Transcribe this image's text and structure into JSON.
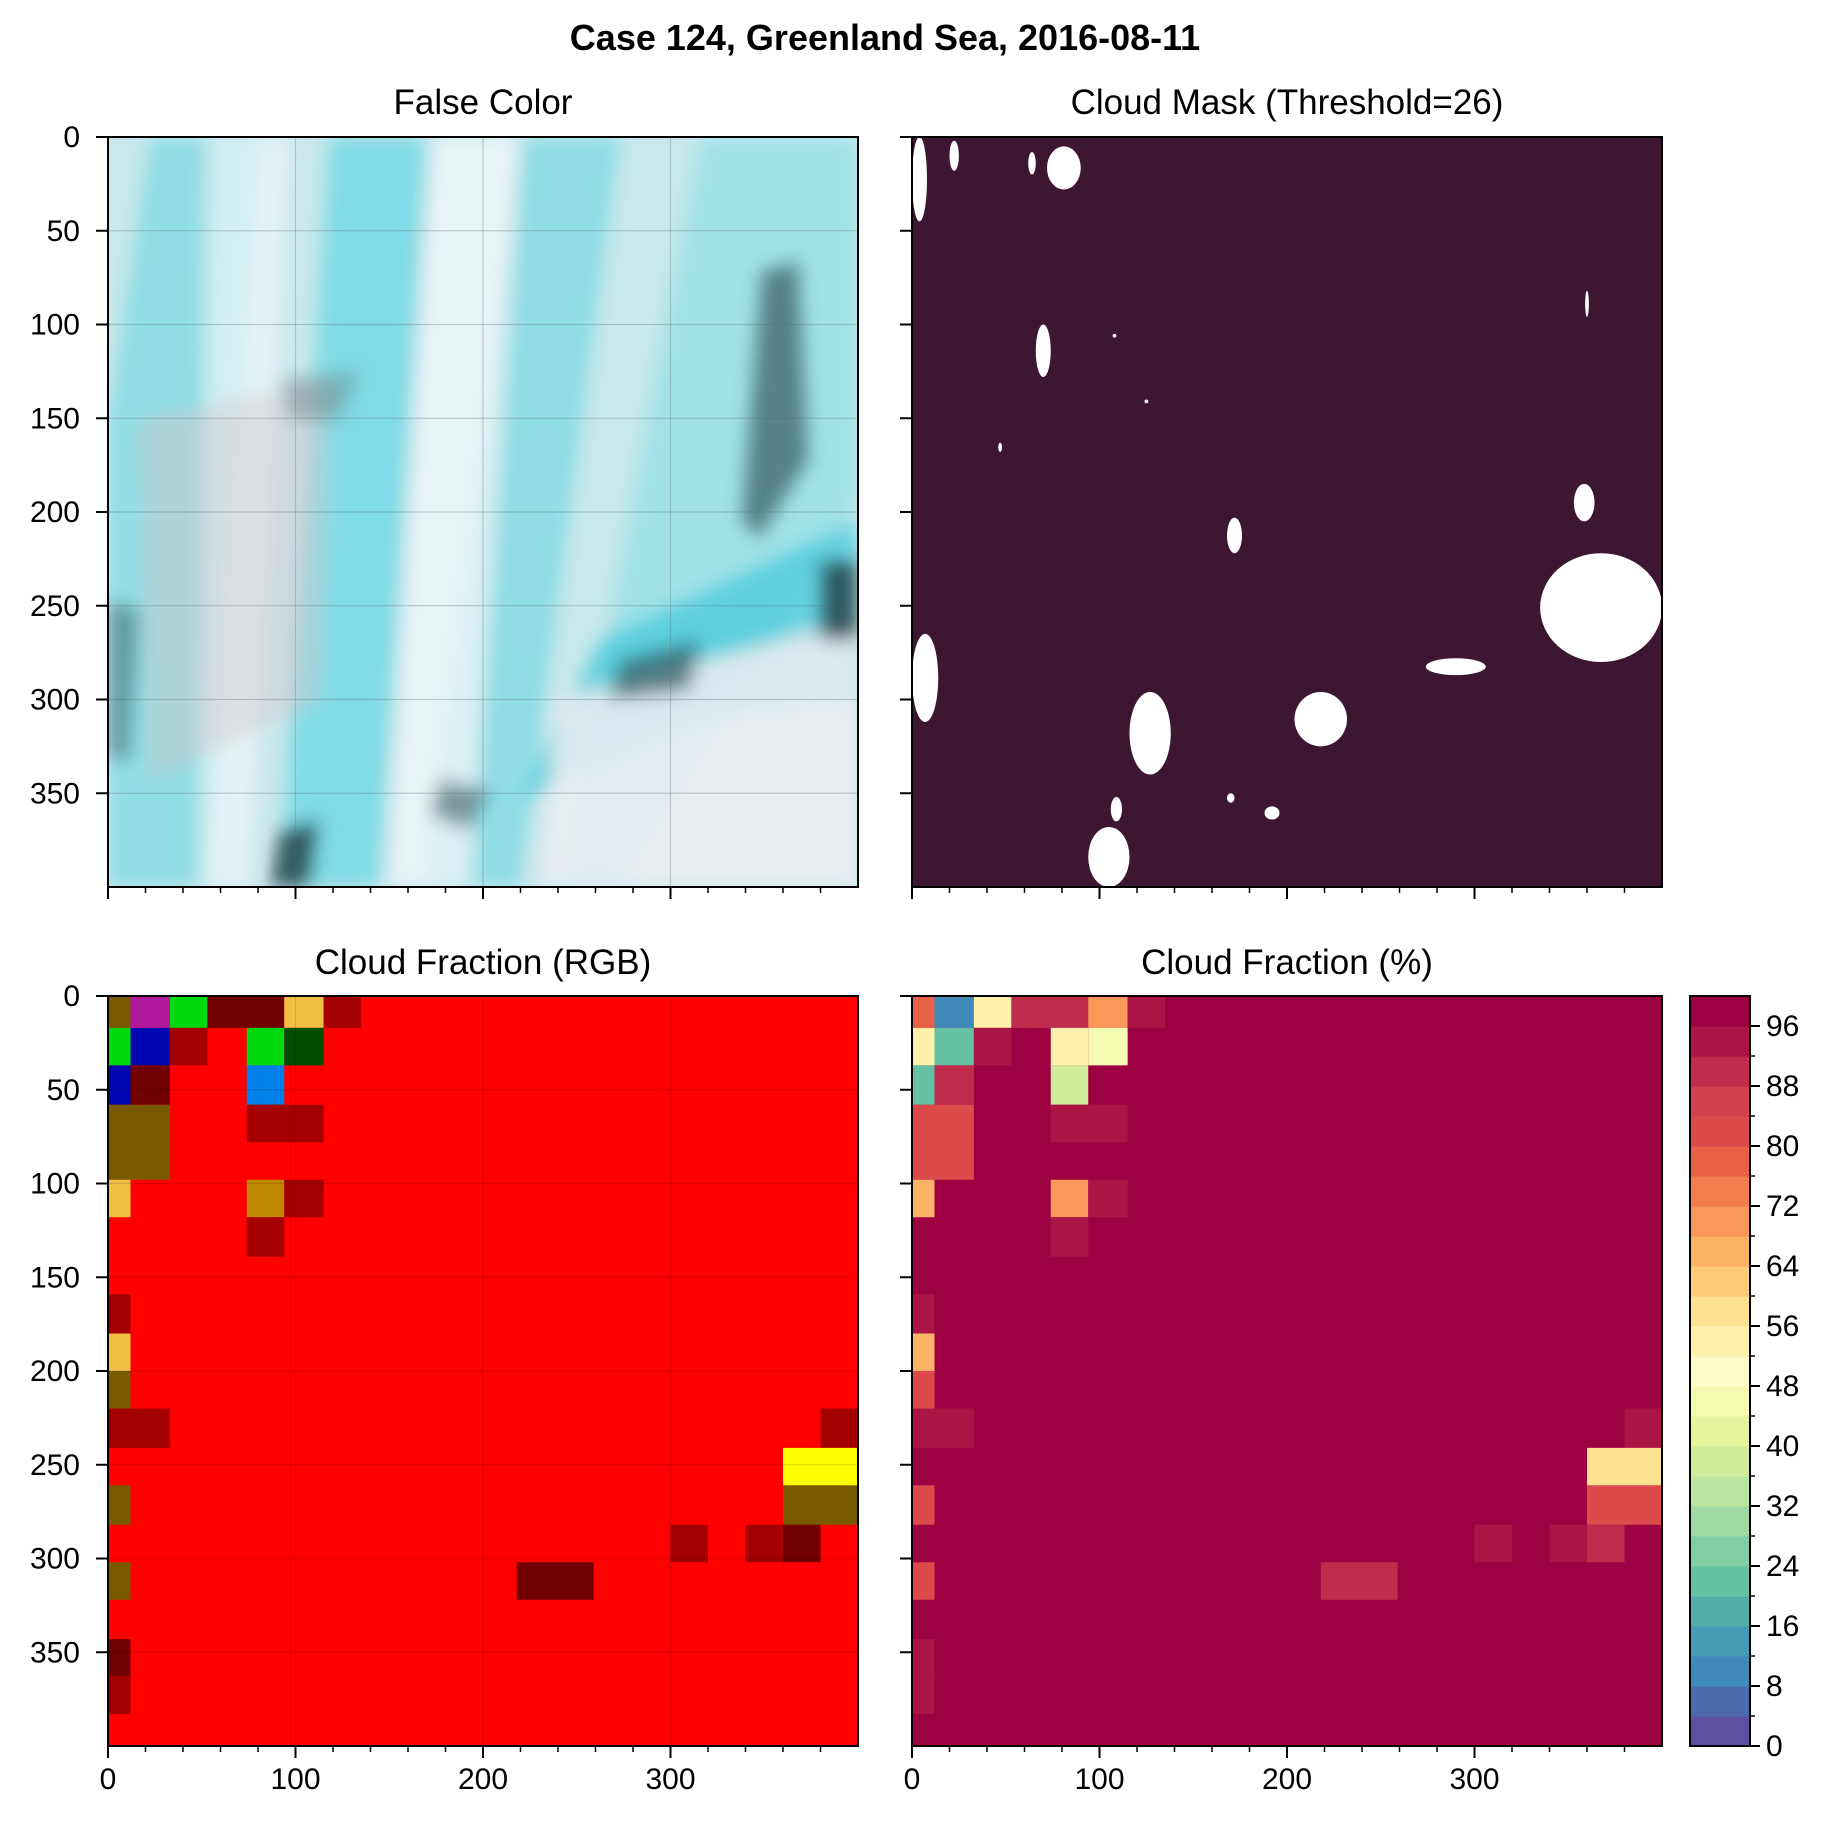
{
  "suptitle": "Case 124, Greenland Sea, 2016-08-11",
  "chart_data": [
    {
      "type": "heatmap",
      "title": "False Color",
      "rendering": "false-color satellite image (cyan clouds/ice, dark sea)",
      "xlim": [
        0,
        400
      ],
      "ylim": [
        0,
        400
      ],
      "y_inverted": true,
      "grid": true,
      "yticks": [
        0,
        50,
        100,
        150,
        200,
        250,
        300,
        350
      ],
      "xticks": [
        0,
        100,
        200,
        300
      ],
      "xticklabels_shown": false
    },
    {
      "type": "heatmap",
      "title": "Cloud Mask (Threshold=26)",
      "rendering": "binary mask: white = clear / not cloud, dark purple = cloud",
      "colors": {
        "cloud": "#3d1731",
        "clear": "#ffffff"
      },
      "xlim": [
        0,
        400
      ],
      "ylim": [
        0,
        400
      ],
      "y_inverted": true,
      "yticks": [
        0,
        50,
        100,
        150,
        200,
        250,
        300,
        350
      ],
      "yticklabels_shown": false,
      "xticks": [
        0,
        100,
        200,
        300
      ],
      "xticklabels_shown": false,
      "clear_regions": [
        {
          "x": [
            0,
            8
          ],
          "y": [
            0,
            45
          ]
        },
        {
          "x": [
            20,
            25
          ],
          "y": [
            2,
            18
          ]
        },
        {
          "x": [
            62,
            66
          ],
          "y": [
            8,
            20
          ]
        },
        {
          "x": [
            72,
            90
          ],
          "y": [
            5,
            28
          ]
        },
        {
          "x": [
            66,
            74
          ],
          "y": [
            100,
            128
          ]
        },
        {
          "x": [
            46,
            48
          ],
          "y": [
            163,
            168
          ]
        },
        {
          "x": [
            124,
            126
          ],
          "y": [
            140,
            142
          ]
        },
        {
          "x": [
            107,
            109
          ],
          "y": [
            105,
            107
          ]
        },
        {
          "x": [
            359,
            361
          ],
          "y": [
            82,
            96
          ]
        },
        {
          "x": [
            353,
            364
          ],
          "y": [
            185,
            205
          ]
        },
        {
          "x": [
            168,
            176
          ],
          "y": [
            203,
            222
          ]
        },
        {
          "x": [
            335,
            400
          ],
          "y": [
            222,
            280
          ]
        },
        {
          "x": [
            274,
            306
          ],
          "y": [
            278,
            287
          ]
        },
        {
          "x": [
            0,
            14
          ],
          "y": [
            265,
            312
          ]
        },
        {
          "x": [
            116,
            138
          ],
          "y": [
            296,
            340
          ]
        },
        {
          "x": [
            204,
            232
          ],
          "y": [
            296,
            325
          ]
        },
        {
          "x": [
            168,
            172
          ],
          "y": [
            350,
            355
          ]
        },
        {
          "x": [
            188,
            196
          ],
          "y": [
            357,
            364
          ]
        },
        {
          "x": [
            106,
            112
          ],
          "y": [
            352,
            365
          ]
        },
        {
          "x": [
            94,
            116
          ],
          "y": [
            368,
            400
          ]
        }
      ]
    },
    {
      "type": "heatmap",
      "title": "Cloud Fraction (RGB)",
      "cell_size": 20,
      "xlim": [
        0,
        400
      ],
      "ylim": [
        0,
        400
      ],
      "y_inverted": true,
      "grid": true,
      "xticks": [
        0,
        100,
        200,
        300
      ],
      "yticks": [
        0,
        50,
        100,
        150,
        200,
        250,
        300,
        350
      ],
      "background_color": "#ff0000",
      "cells": [
        {
          "x": [
            0,
            12
          ],
          "y": [
            0,
            17
          ],
          "color": "#7a5a00"
        },
        {
          "x": [
            12,
            33
          ],
          "y": [
            0,
            17
          ],
          "color": "#b0199c"
        },
        {
          "x": [
            33,
            53
          ],
          "y": [
            0,
            17
          ],
          "color": "#00d90f"
        },
        {
          "x": [
            53,
            94
          ],
          "y": [
            0,
            17
          ],
          "color": "#710000"
        },
        {
          "x": [
            94,
            115
          ],
          "y": [
            0,
            17
          ],
          "color": "#f0c044"
        },
        {
          "x": [
            115,
            135
          ],
          "y": [
            0,
            17
          ],
          "color": "#a50000"
        },
        {
          "x": [
            0,
            12
          ],
          "y": [
            17,
            37
          ],
          "color": "#00d90f"
        },
        {
          "x": [
            12,
            33
          ],
          "y": [
            17,
            37
          ],
          "color": "#0006b0"
        },
        {
          "x": [
            33,
            53
          ],
          "y": [
            17,
            37
          ],
          "color": "#a50000"
        },
        {
          "x": [
            74,
            94
          ],
          "y": [
            17,
            37
          ],
          "color": "#00d90f"
        },
        {
          "x": [
            94,
            115
          ],
          "y": [
            17,
            37
          ],
          "color": "#004d00"
        },
        {
          "x": [
            0,
            12
          ],
          "y": [
            37,
            58
          ],
          "color": "#0006b0"
        },
        {
          "x": [
            12,
            33
          ],
          "y": [
            37,
            58
          ],
          "color": "#710000"
        },
        {
          "x": [
            74,
            94
          ],
          "y": [
            37,
            58
          ],
          "color": "#0080e8"
        },
        {
          "x": [
            0,
            33
          ],
          "y": [
            58,
            98
          ],
          "color": "#7a5a00"
        },
        {
          "x": [
            74,
            115
          ],
          "y": [
            58,
            78
          ],
          "color": "#a50000"
        },
        {
          "x": [
            0,
            12
          ],
          "y": [
            98,
            118
          ],
          "color": "#f0c044"
        },
        {
          "x": [
            74,
            94
          ],
          "y": [
            98,
            118
          ],
          "color": "#be8800"
        },
        {
          "x": [
            94,
            115
          ],
          "y": [
            98,
            118
          ],
          "color": "#a50000"
        },
        {
          "x": [
            74,
            94
          ],
          "y": [
            118,
            139
          ],
          "color": "#a50000"
        },
        {
          "x": [
            0,
            12
          ],
          "y": [
            159,
            180
          ],
          "color": "#a50000"
        },
        {
          "x": [
            0,
            12
          ],
          "y": [
            180,
            200
          ],
          "color": "#f0c044"
        },
        {
          "x": [
            0,
            12
          ],
          "y": [
            200,
            220
          ],
          "color": "#7a5a00"
        },
        {
          "x": [
            0,
            33
          ],
          "y": [
            220,
            241
          ],
          "color": "#a50000"
        },
        {
          "x": [
            380,
            400
          ],
          "y": [
            220,
            241
          ],
          "color": "#a50000"
        },
        {
          "x": [
            360,
            400
          ],
          "y": [
            241,
            261
          ],
          "color": "#ffff00"
        },
        {
          "x": [
            0,
            12
          ],
          "y": [
            261,
            282
          ],
          "color": "#7a5a00"
        },
        {
          "x": [
            360,
            400
          ],
          "y": [
            261,
            282
          ],
          "color": "#7a5a00"
        },
        {
          "x": [
            300,
            320
          ],
          "y": [
            282,
            302
          ],
          "color": "#a50000"
        },
        {
          "x": [
            340,
            360
          ],
          "y": [
            282,
            302
          ],
          "color": "#a50000"
        },
        {
          "x": [
            360,
            380
          ],
          "y": [
            282,
            302
          ],
          "color": "#710000"
        },
        {
          "x": [
            0,
            12
          ],
          "y": [
            302,
            322
          ],
          "color": "#7a5a00"
        },
        {
          "x": [
            218,
            259
          ],
          "y": [
            302,
            322
          ],
          "color": "#710000"
        },
        {
          "x": [
            0,
            12
          ],
          "y": [
            343,
            363
          ],
          "color": "#710000"
        },
        {
          "x": [
            0,
            12
          ],
          "y": [
            363,
            383
          ],
          "color": "#a50000"
        }
      ]
    },
    {
      "type": "heatmap",
      "title": "Cloud Fraction (%)",
      "cell_size": 20,
      "xlim": [
        0,
        400
      ],
      "ylim": [
        0,
        400
      ],
      "y_inverted": true,
      "xticks": [
        0,
        100,
        200,
        300
      ],
      "yticks": [
        0,
        50,
        100,
        150,
        200,
        250,
        300,
        350
      ],
      "yticklabels_shown": false,
      "background_value": 100,
      "cells": [
        {
          "x": [
            0,
            12
          ],
          "y": [
            0,
            17
          ],
          "value": 76
        },
        {
          "x": [
            12,
            33
          ],
          "y": [
            0,
            17
          ],
          "value": 10
        },
        {
          "x": [
            33,
            53
          ],
          "y": [
            0,
            17
          ],
          "value": 54
        },
        {
          "x": [
            53,
            94
          ],
          "y": [
            0,
            17
          ],
          "value": 88
        },
        {
          "x": [
            94,
            115
          ],
          "y": [
            0,
            17
          ],
          "value": 68
        },
        {
          "x": [
            115,
            135
          ],
          "y": [
            0,
            17
          ],
          "value": 92
        },
        {
          "x": [
            0,
            12
          ],
          "y": [
            17,
            37
          ],
          "value": 52
        },
        {
          "x": [
            12,
            33
          ],
          "y": [
            17,
            37
          ],
          "value": 22
        },
        {
          "x": [
            33,
            53
          ],
          "y": [
            17,
            37
          ],
          "value": 92
        },
        {
          "x": [
            74,
            94
          ],
          "y": [
            17,
            37
          ],
          "value": 52
        },
        {
          "x": [
            94,
            115
          ],
          "y": [
            17,
            37
          ],
          "value": 44
        },
        {
          "x": [
            0,
            12
          ],
          "y": [
            37,
            58
          ],
          "value": 20
        },
        {
          "x": [
            12,
            33
          ],
          "y": [
            37,
            58
          ],
          "value": 88
        },
        {
          "x": [
            74,
            94
          ],
          "y": [
            37,
            58
          ],
          "value": 36
        },
        {
          "x": [
            0,
            33
          ],
          "y": [
            58,
            98
          ],
          "value": 80
        },
        {
          "x": [
            74,
            115
          ],
          "y": [
            58,
            78
          ],
          "value": 92
        },
        {
          "x": [
            0,
            12
          ],
          "y": [
            98,
            118
          ],
          "value": 66
        },
        {
          "x": [
            74,
            94
          ],
          "y": [
            98,
            118
          ],
          "value": 70
        },
        {
          "x": [
            94,
            115
          ],
          "y": [
            98,
            118
          ],
          "value": 92
        },
        {
          "x": [
            74,
            94
          ],
          "y": [
            118,
            139
          ],
          "value": 92
        },
        {
          "x": [
            0,
            12
          ],
          "y": [
            159,
            180
          ],
          "value": 92
        },
        {
          "x": [
            0,
            12
          ],
          "y": [
            180,
            200
          ],
          "value": 66
        },
        {
          "x": [
            0,
            12
          ],
          "y": [
            200,
            220
          ],
          "value": 80
        },
        {
          "x": [
            0,
            33
          ],
          "y": [
            220,
            241
          ],
          "value": 92
        },
        {
          "x": [
            380,
            400
          ],
          "y": [
            220,
            241
          ],
          "value": 92
        },
        {
          "x": [
            360,
            400
          ],
          "y": [
            241,
            261
          ],
          "value": 58
        },
        {
          "x": [
            0,
            12
          ],
          "y": [
            261,
            282
          ],
          "value": 80
        },
        {
          "x": [
            360,
            400
          ],
          "y": [
            261,
            282
          ],
          "value": 80
        },
        {
          "x": [
            300,
            320
          ],
          "y": [
            282,
            302
          ],
          "value": 92
        },
        {
          "x": [
            340,
            360
          ],
          "y": [
            282,
            302
          ],
          "value": 92
        },
        {
          "x": [
            360,
            380
          ],
          "y": [
            282,
            302
          ],
          "value": 88
        },
        {
          "x": [
            0,
            12
          ],
          "y": [
            302,
            322
          ],
          "value": 80
        },
        {
          "x": [
            218,
            259
          ],
          "y": [
            302,
            322
          ],
          "value": 88
        },
        {
          "x": [
            0,
            12
          ],
          "y": [
            343,
            363
          ],
          "value": 92
        },
        {
          "x": [
            0,
            12
          ],
          "y": [
            363,
            383
          ],
          "value": 92
        }
      ],
      "colorbar": {
        "min": 0,
        "max": 100,
        "levels": 25,
        "ticks": [
          0,
          8,
          16,
          24,
          32,
          40,
          48,
          56,
          64,
          72,
          80,
          88,
          96
        ],
        "colormap": "Spectral_r",
        "colors": [
          "#5e4fa2",
          "#4a6cae",
          "#3f8ab9",
          "#459ab6",
          "#52aeaa",
          "#66c2a5",
          "#82cda5",
          "#a0d9a4",
          "#bbe4a0",
          "#d0ec9c",
          "#e4f59b",
          "#f4fab1",
          "#fffcc9",
          "#fff0ac",
          "#fee191",
          "#fdcb7a",
          "#fdb365",
          "#f99858",
          "#f47d4d",
          "#e96048",
          "#dc4a4c",
          "#d2404f",
          "#c02c4c",
          "#ab1546",
          "#9e0142"
        ]
      }
    }
  ]
}
